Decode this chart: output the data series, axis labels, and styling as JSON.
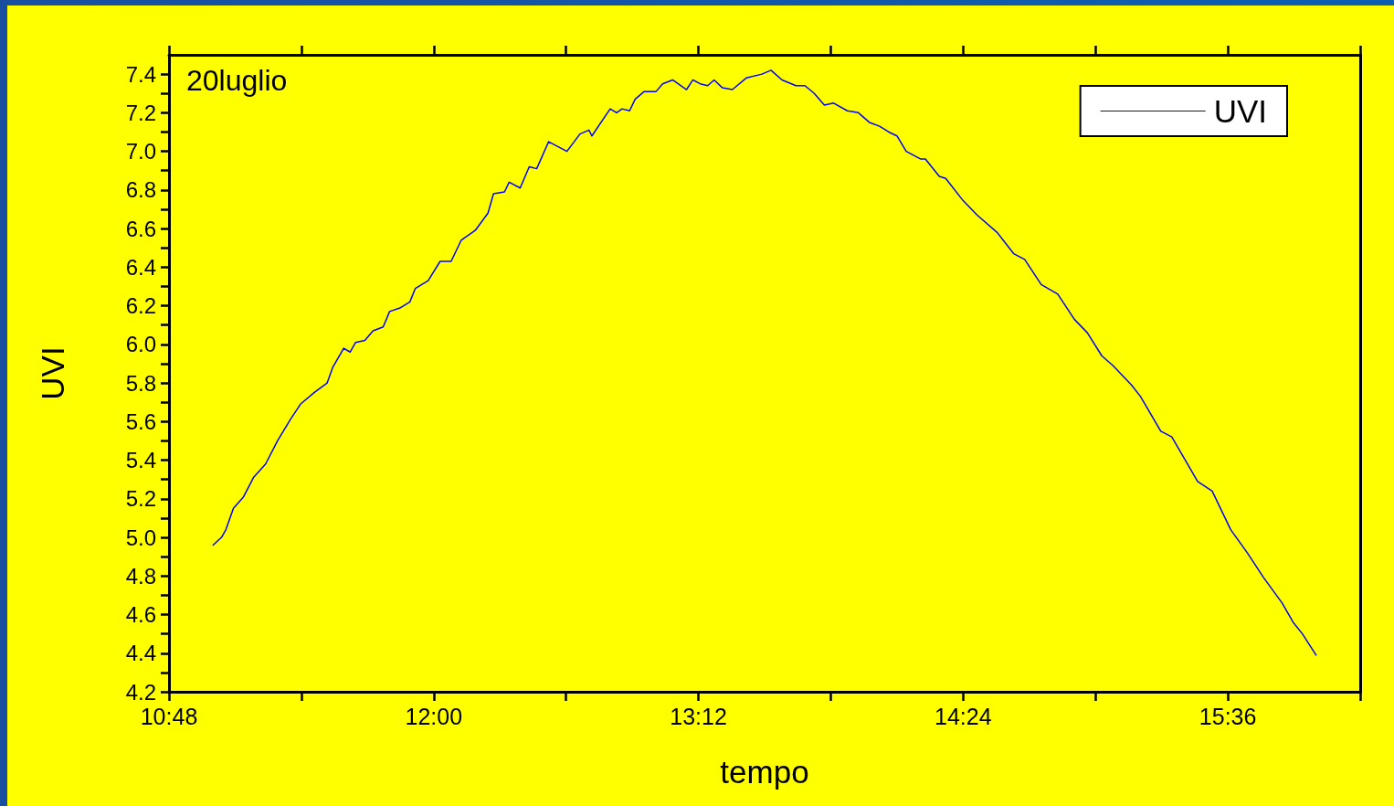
{
  "chart_data": {
    "type": "line",
    "xlabel": "tempo",
    "ylabel": "UVI",
    "annotations": [
      "20luglio"
    ],
    "xlim": [
      10.8,
      16.2
    ],
    "xticks": [
      {
        "value": 10.8,
        "label": "10:48"
      },
      {
        "value": 11.4,
        "label": null
      },
      {
        "value": 12,
        "label": "12:00"
      },
      {
        "value": 12.6,
        "label": null
      },
      {
        "value": 13.2,
        "label": "13:12"
      },
      {
        "value": 13.8,
        "label": null
      },
      {
        "value": 14.4,
        "label": "14:24"
      },
      {
        "value": 15,
        "label": null
      },
      {
        "value": 15.6,
        "label": "15:36"
      },
      {
        "value": 16.2,
        "label": null
      }
    ],
    "ylim": [
      4.2,
      7.5
    ],
    "yticks": [
      4.2,
      {
        "value": 4.3,
        "label": null
      },
      4.4,
      {
        "value": 4.5,
        "label": null
      },
      4.6,
      {
        "value": 4.7,
        "label": null
      },
      4.8,
      {
        "value": 4.9,
        "label": null
      },
      {
        "value": 5,
        "label": "5.0"
      },
      {
        "value": 5.1,
        "label": null
      },
      5.2,
      {
        "value": 5.3,
        "label": null
      },
      5.4,
      {
        "value": 5.5,
        "label": null
      },
      5.6,
      {
        "value": 5.7,
        "label": null
      },
      5.8,
      {
        "value": 5.9,
        "label": null
      },
      {
        "value": 6,
        "label": "6.0"
      },
      {
        "value": 6.1,
        "label": null
      },
      6.2,
      {
        "value": 6.3,
        "label": null
      },
      6.4,
      {
        "value": 6.5,
        "label": null
      },
      6.6,
      {
        "value": 6.7,
        "label": null
      },
      6.8,
      {
        "value": 6.9,
        "label": null
      },
      {
        "value": 7,
        "label": "7.0"
      },
      {
        "value": 7.1,
        "label": null
      },
      7.2,
      {
        "value": 7.3,
        "label": null
      },
      7.4
    ],
    "grid": false,
    "legend": "top right",
    "marker": "none",
    "line_style": "solid",
    "series": [
      {
        "name": "UVI",
        "color": "#0000ff",
        "x": [
          11.0,
          11.038,
          11.058,
          11.092,
          11.138,
          11.183,
          11.238,
          11.292,
          11.35,
          11.396,
          11.458,
          11.517,
          11.542,
          11.592,
          11.621,
          11.646,
          11.688,
          11.725,
          11.771,
          11.8,
          11.85,
          11.892,
          11.917,
          11.975,
          12.029,
          12.079,
          12.125,
          12.188,
          12.246,
          12.271,
          12.321,
          12.342,
          12.392,
          12.433,
          12.467,
          12.521,
          12.604,
          12.663,
          12.704,
          12.717,
          12.8,
          12.829,
          12.854,
          12.888,
          12.913,
          12.954,
          13.008,
          13.038,
          13.083,
          13.146,
          13.175,
          13.208,
          13.242,
          13.271,
          13.308,
          13.354,
          13.417,
          13.488,
          13.529,
          13.579,
          13.642,
          13.683,
          13.725,
          13.771,
          13.813,
          13.875,
          13.925,
          13.975,
          14.021,
          14.063,
          14.1,
          14.142,
          14.208,
          14.229,
          14.292,
          14.321,
          14.396,
          14.463,
          14.554,
          14.629,
          14.679,
          14.754,
          14.829,
          14.904,
          14.963,
          15.029,
          15.079,
          15.163,
          15.204,
          15.296,
          15.346,
          15.463,
          15.529,
          15.613,
          15.688,
          15.763,
          15.846,
          15.896,
          15.938,
          16.0
        ],
        "values": [
          4.96,
          5.0,
          5.04,
          5.15,
          5.21,
          5.31,
          5.38,
          5.5,
          5.61,
          5.69,
          5.75,
          5.8,
          5.88,
          5.98,
          5.96,
          6.01,
          6.02,
          6.07,
          6.09,
          6.17,
          6.19,
          6.22,
          6.29,
          6.33,
          6.43,
          6.43,
          6.54,
          6.59,
          6.68,
          6.78,
          6.79,
          6.84,
          6.81,
          6.92,
          6.91,
          7.05,
          7.0,
          7.09,
          7.11,
          7.08,
          7.22,
          7.2,
          7.22,
          7.21,
          7.27,
          7.31,
          7.31,
          7.35,
          7.37,
          7.32,
          7.37,
          7.35,
          7.34,
          7.37,
          7.33,
          7.32,
          7.38,
          7.4,
          7.42,
          7.37,
          7.34,
          7.34,
          7.3,
          7.24,
          7.25,
          7.21,
          7.2,
          7.15,
          7.13,
          7.1,
          7.08,
          7.0,
          6.96,
          6.96,
          6.87,
          6.86,
          6.75,
          6.67,
          6.58,
          6.47,
          6.44,
          6.31,
          6.26,
          6.13,
          6.06,
          5.94,
          5.89,
          5.79,
          5.73,
          5.55,
          5.52,
          5.29,
          5.24,
          5.04,
          4.92,
          4.79,
          4.66,
          4.56,
          4.5,
          4.39
        ]
      }
    ]
  }
}
